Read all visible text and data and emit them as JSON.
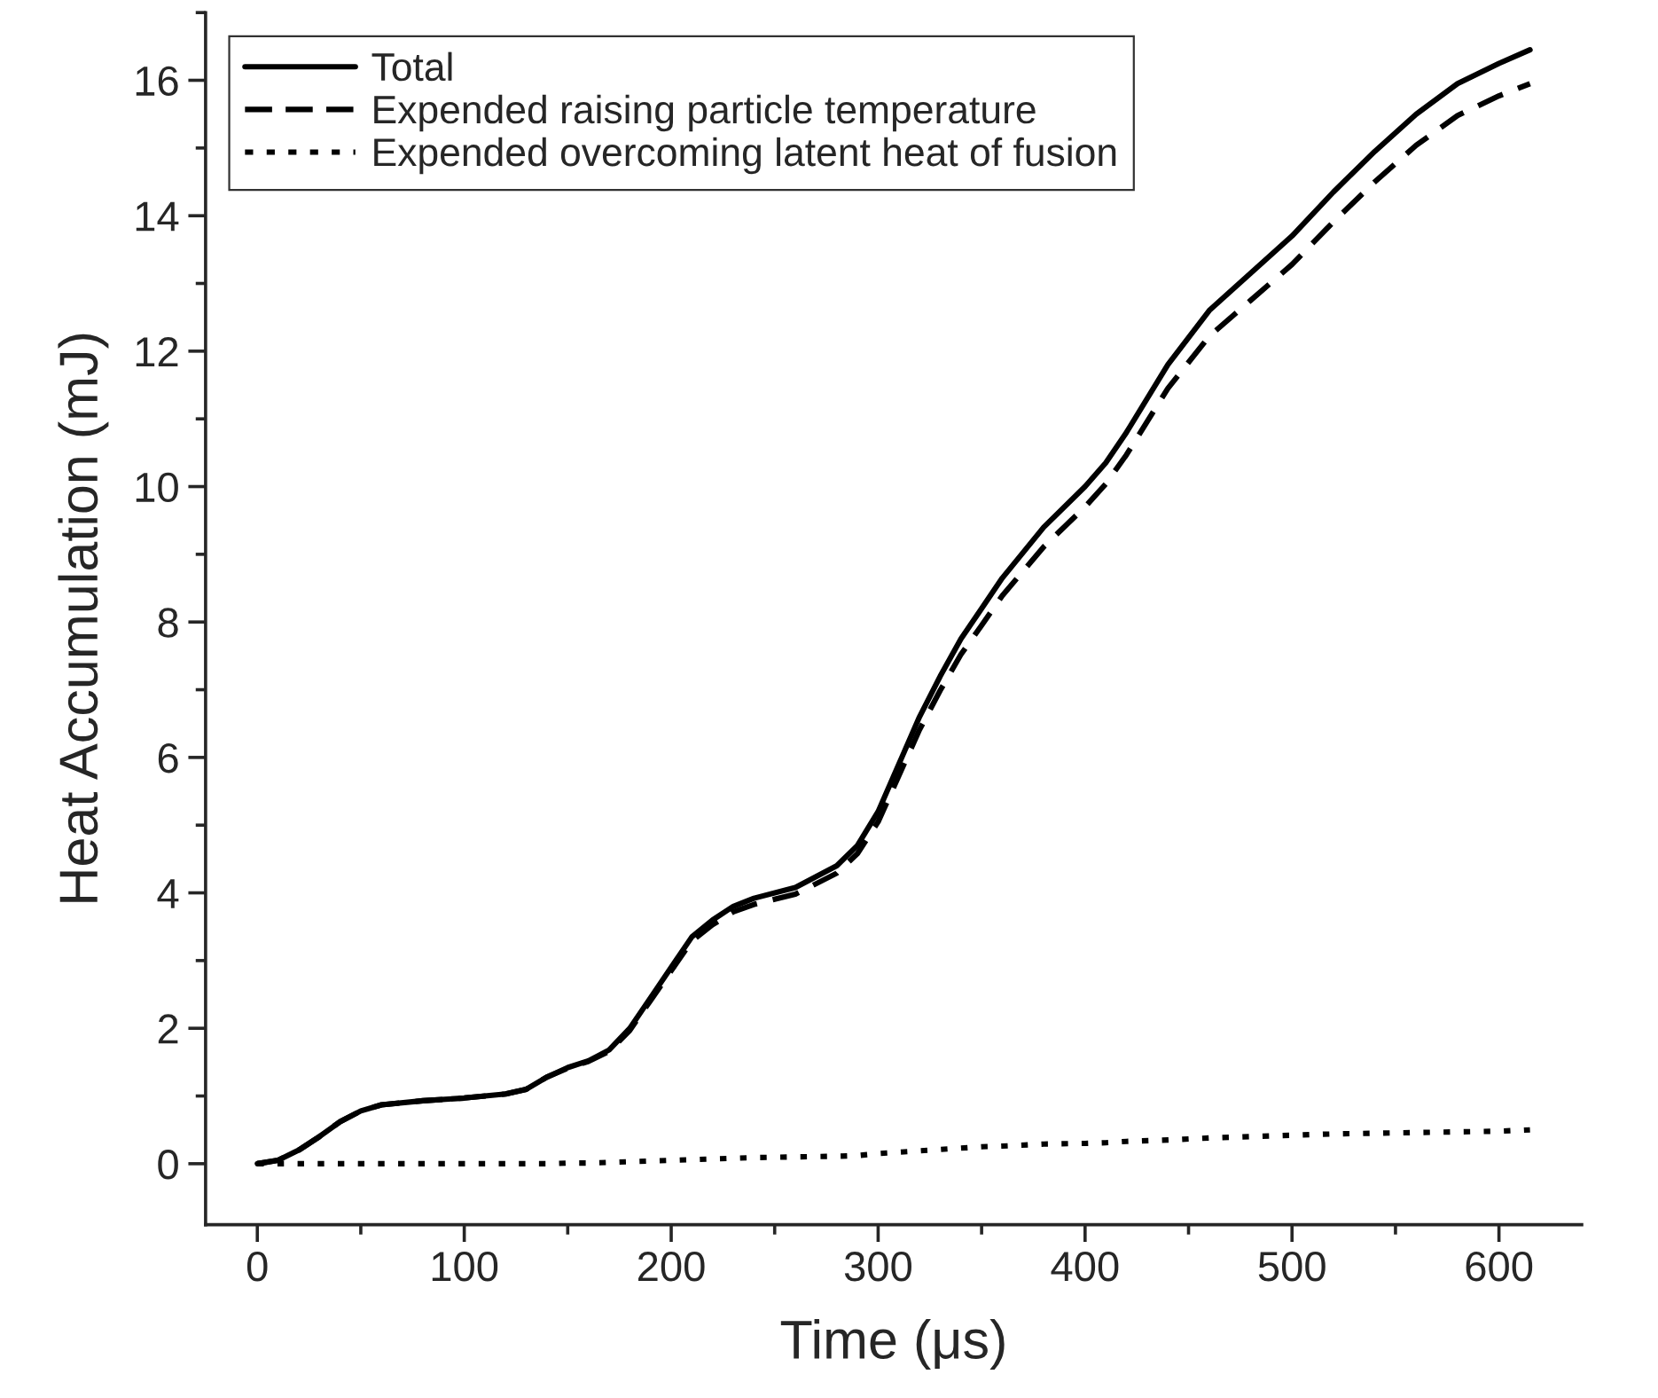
{
  "chart_data": {
    "type": "line",
    "xlabel": "Time (μs)",
    "ylabel": "Heat Accumulation (mJ)",
    "x": [
      0,
      10,
      20,
      30,
      40,
      50,
      60,
      80,
      100,
      120,
      130,
      140,
      150,
      160,
      170,
      180,
      190,
      200,
      210,
      220,
      230,
      240,
      260,
      280,
      290,
      300,
      310,
      320,
      330,
      340,
      350,
      360,
      380,
      400,
      410,
      420,
      440,
      460,
      480,
      500,
      520,
      540,
      560,
      580,
      600,
      615
    ],
    "series": [
      {
        "name": "Total",
        "color": "#000000",
        "line_style": "solid",
        "values": [
          0,
          0.05,
          0.2,
          0.4,
          0.62,
          0.78,
          0.87,
          0.93,
          0.97,
          1.03,
          1.1,
          1.28,
          1.42,
          1.52,
          1.68,
          2.0,
          2.45,
          2.9,
          3.35,
          3.6,
          3.8,
          3.92,
          4.08,
          4.4,
          4.7,
          5.2,
          5.9,
          6.6,
          7.2,
          7.75,
          8.2,
          8.65,
          9.4,
          10.0,
          10.35,
          10.8,
          11.8,
          12.6,
          13.15,
          13.7,
          14.35,
          14.95,
          15.5,
          15.95,
          16.25,
          16.45
        ]
      },
      {
        "name": "Expended raising particle temperature",
        "color": "#000000",
        "line_style": "dashed",
        "values": [
          0,
          0.05,
          0.2,
          0.4,
          0.62,
          0.78,
          0.87,
          0.93,
          0.97,
          1.03,
          1.1,
          1.28,
          1.41,
          1.51,
          1.66,
          1.97,
          2.41,
          2.85,
          3.29,
          3.53,
          3.72,
          3.83,
          3.98,
          4.29,
          4.58,
          5.05,
          5.73,
          6.41,
          6.99,
          7.52,
          7.95,
          8.39,
          9.11,
          9.7,
          10.04,
          10.47,
          11.45,
          12.22,
          12.75,
          13.28,
          13.91,
          14.5,
          15.04,
          15.48,
          15.77,
          15.95
        ]
      },
      {
        "name": "Expended overcoming latent heat of fusion",
        "color": "#000000",
        "line_style": "dotted",
        "values": [
          0,
          0,
          0,
          0,
          0,
          0,
          0,
          0,
          0,
          0,
          0,
          0,
          0.01,
          0.01,
          0.02,
          0.03,
          0.04,
          0.05,
          0.06,
          0.07,
          0.08,
          0.09,
          0.1,
          0.11,
          0.12,
          0.15,
          0.17,
          0.19,
          0.21,
          0.23,
          0.25,
          0.26,
          0.29,
          0.3,
          0.31,
          0.33,
          0.35,
          0.38,
          0.4,
          0.42,
          0.44,
          0.45,
          0.46,
          0.47,
          0.48,
          0.5
        ]
      }
    ],
    "xlim": [
      -25,
      640
    ],
    "ylim": [
      -0.9,
      17
    ],
    "xticks": [
      0,
      100,
      200,
      300,
      400,
      500,
      600
    ],
    "yticks": [
      0,
      2,
      4,
      6,
      8,
      10,
      12,
      14,
      16
    ],
    "grid": false,
    "legend": "top left",
    "marker": "none"
  }
}
